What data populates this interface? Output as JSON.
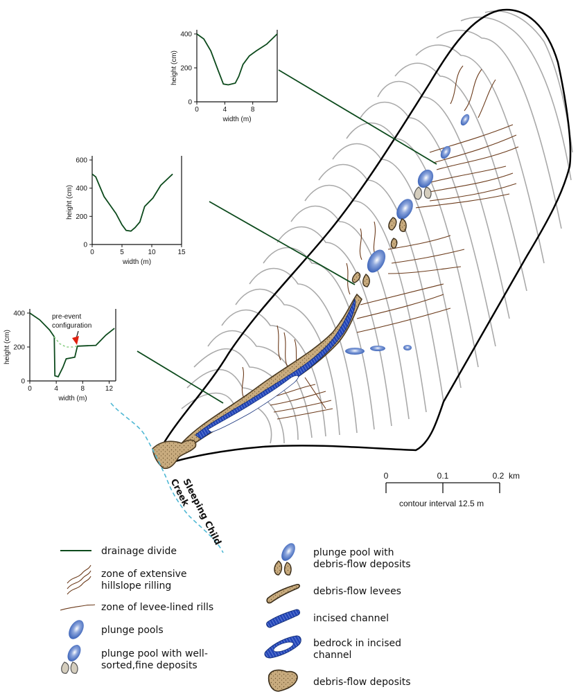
{
  "profiles": [
    {
      "id": "upper",
      "xlabel": "width (m)",
      "ylabel": "height (cm)",
      "xticks": [
        "0",
        "4",
        "8"
      ],
      "yticks": [
        "0",
        "200",
        "400"
      ],
      "xlim": [
        0,
        11.5
      ],
      "ylim": [
        0,
        400
      ],
      "points": [
        [
          0,
          400
        ],
        [
          1,
          370
        ],
        [
          2,
          300
        ],
        [
          3,
          190
        ],
        [
          3.8,
          105
        ],
        [
          4.5,
          100
        ],
        [
          5.5,
          110
        ],
        [
          6,
          150
        ],
        [
          6.6,
          220
        ],
        [
          7.5,
          270
        ],
        [
          8.5,
          300
        ],
        [
          10,
          340
        ],
        [
          11.5,
          400
        ]
      ]
    },
    {
      "id": "middle",
      "xlabel": "width (m)",
      "ylabel": "height (cm)",
      "xticks": [
        "0",
        "5",
        "10",
        "15"
      ],
      "yticks": [
        "0",
        "200",
        "400",
        "600"
      ],
      "xlim": [
        0,
        15
      ],
      "ylim": [
        0,
        600
      ],
      "points": [
        [
          0,
          500
        ],
        [
          0.6,
          480
        ],
        [
          1.2,
          420
        ],
        [
          2,
          340
        ],
        [
          3,
          280
        ],
        [
          4,
          220
        ],
        [
          5,
          140
        ],
        [
          5.7,
          100
        ],
        [
          6.5,
          95
        ],
        [
          7.2,
          120
        ],
        [
          8,
          160
        ],
        [
          8.8,
          270
        ],
        [
          10.2,
          330
        ],
        [
          11.5,
          420
        ],
        [
          13.5,
          500
        ]
      ]
    },
    {
      "id": "lower",
      "xlabel": "width (m)",
      "ylabel": "height (cm)",
      "xticks": [
        "0",
        "4",
        "8",
        "12"
      ],
      "yticks": [
        "0",
        "200",
        "400"
      ],
      "xlim": [
        0,
        13
      ],
      "ylim": [
        0,
        400
      ],
      "annotation": "pre-event configuration",
      "points": [
        [
          0,
          400
        ],
        [
          1.5,
          360
        ],
        [
          3,
          300
        ],
        [
          3.7,
          260
        ],
        [
          3.8,
          30
        ],
        [
          4.3,
          25
        ],
        [
          5,
          80
        ],
        [
          5.5,
          130
        ],
        [
          6.8,
          140
        ],
        [
          7.2,
          205
        ],
        [
          10,
          210
        ],
        [
          11.5,
          270
        ],
        [
          12.8,
          310
        ]
      ],
      "pre_event_points": [
        [
          3.7,
          260
        ],
        [
          4.5,
          220
        ],
        [
          5.5,
          200
        ],
        [
          6.5,
          200
        ],
        [
          7.2,
          205
        ]
      ]
    }
  ],
  "scale": {
    "ticks": [
      "0",
      "0.1",
      "0.2"
    ],
    "unit": "km",
    "contour_interval": "contour interval 12.5 m"
  },
  "creek_label": "Sleeping Child Creek",
  "legend": {
    "left": [
      {
        "symbol": "divide",
        "label": "drainage divide"
      },
      {
        "symbol": "hillslope-rilling",
        "label": "zone of extensive hillslope rilling"
      },
      {
        "symbol": "levee-rills",
        "label": "zone of levee-lined rills"
      },
      {
        "symbol": "plunge-pool",
        "label": "plunge pools"
      },
      {
        "symbol": "pool-fine-deposits",
        "label": "plunge pool with well-sorted,fine deposits"
      }
    ],
    "right": [
      {
        "symbol": "pool-debris-deposits",
        "label": "plunge pool with debris-flow deposits"
      },
      {
        "symbol": "levees",
        "label": "debris-flow levees"
      },
      {
        "symbol": "incised-channel",
        "label": "incised channel"
      },
      {
        "symbol": "bedrock-channel",
        "label": "bedrock in incised channel"
      },
      {
        "symbol": "debris-deposits",
        "label": "debris-flow deposits"
      }
    ]
  },
  "colors": {
    "divide": "#0c4a1c",
    "contour": "#a9a9a9",
    "boundary": "#000000",
    "rill": "#6b3a1a",
    "debris": "#c8ab7e",
    "channel": "#1d3fa6",
    "pool": "#6f8fcf",
    "creek": "#4fb8d4",
    "fine_deposit": "#d4cdbd",
    "arrow": "#e02010"
  }
}
